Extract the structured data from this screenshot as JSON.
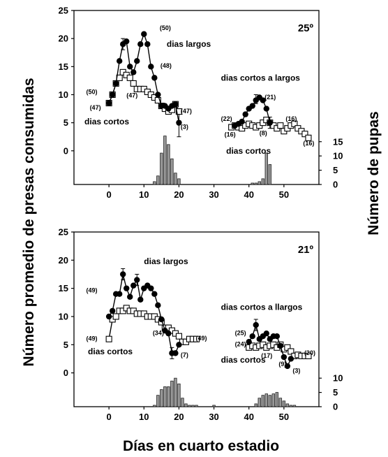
{
  "figure": {
    "ylabel_left": "Número promedio de presas consumidas",
    "ylabel_right": "Número de pupas",
    "xlabel": "Días en cuarto estadio"
  },
  "chart_data": [
    {
      "type": "line",
      "panel_label": "25º",
      "xticks": [
        "0",
        "10",
        "20",
        "30",
        "40",
        "50"
      ],
      "yticks": [
        "0",
        "5",
        "10",
        "15",
        "20",
        "25"
      ],
      "y2ticks": [
        "0",
        "5",
        "10",
        "15"
      ],
      "xlim": [
        -10,
        60
      ],
      "ylim": [
        -6,
        25
      ],
      "y2lim": [
        0,
        24
      ],
      "series": [
        {
          "name": "dias largos",
          "marker": "filled-circle",
          "x": [
            0,
            1,
            2,
            3,
            4,
            5,
            6,
            7,
            8,
            9,
            10,
            11,
            12,
            13,
            14,
            15,
            16,
            17,
            18,
            19,
            20
          ],
          "y": [
            8.5,
            10,
            12,
            16,
            19,
            19.5,
            15,
            14,
            16,
            19,
            20.8,
            19,
            15,
            13,
            10,
            8,
            8,
            7.5,
            8,
            8.3,
            5
          ]
        },
        {
          "name": "dias cortos",
          "marker": "open-square",
          "x": [
            0,
            1,
            2,
            3,
            4,
            5,
            6,
            7,
            8,
            9,
            10,
            11,
            12,
            13,
            14,
            15,
            16,
            17,
            18,
            19,
            20
          ],
          "y": [
            8.5,
            10,
            12,
            13,
            14,
            13.5,
            13,
            12,
            11,
            11,
            11,
            10.5,
            10,
            9.5,
            9,
            8,
            7.5,
            7,
            7.3,
            8.3,
            7
          ]
        },
        {
          "name": "dias cortos a largos",
          "marker": "filled-circle",
          "x": [
            36,
            37,
            38,
            39,
            40,
            41,
            42,
            43,
            44,
            45,
            46
          ],
          "y": [
            4.5,
            4.8,
            5.2,
            6.5,
            7.5,
            8,
            9,
            9.5,
            9,
            7.5,
            5
          ]
        },
        {
          "name": "dias cortos (2)",
          "marker": "open-square",
          "x": [
            35,
            36,
            37,
            38,
            39,
            40,
            41,
            42,
            43,
            44,
            45,
            46,
            47,
            48,
            49,
            50,
            51,
            52,
            53,
            54,
            55,
            56,
            57
          ],
          "y": [
            4.2,
            4.5,
            4.2,
            4,
            4.5,
            4.8,
            4.5,
            4.2,
            4.5,
            5,
            5.5,
            5,
            4.5,
            4,
            4.5,
            3.5,
            4,
            4.5,
            4.8,
            4,
            3.5,
            3,
            2.3
          ]
        }
      ],
      "error_bars": [
        {
          "x": 4,
          "y": 19,
          "err": 1
        },
        {
          "x": 20,
          "y": 5,
          "err": 2.5
        },
        {
          "x": 42,
          "y": 9.2,
          "err": 0.8
        },
        {
          "x": 46,
          "y": 5,
          "err": 1
        }
      ],
      "pupae_histogram": {
        "x": [
          13,
          14,
          15,
          16,
          17,
          18,
          19,
          20,
          41,
          42,
          43,
          44,
          45,
          46
        ],
        "values": [
          1,
          3,
          11,
          17,
          14,
          9,
          4,
          2,
          0.5,
          0.5,
          1,
          2,
          11,
          7
        ]
      },
      "annotations": [
        {
          "text": "(50)",
          "x": 14.5,
          "y": 21.5
        },
        {
          "text": "dias largos",
          "x": 16.5,
          "y": 18.5
        },
        {
          "text": "(48)",
          "x": 14.7,
          "y": 14.8
        },
        {
          "text": "(50)",
          "x": -6.5,
          "y": 10.1
        },
        {
          "text": "(47)",
          "x": -5.5,
          "y": 7.3
        },
        {
          "text": "(47)",
          "x": 5,
          "y": 9.5
        },
        {
          "text": "(47)",
          "x": 20.5,
          "y": 6.7
        },
        {
          "text": "(3)",
          "x": 20.5,
          "y": 3.9
        },
        {
          "text": "dias cortos",
          "x": -7,
          "y": 4.7
        },
        {
          "text": "dias cortos a largos",
          "x": 32,
          "y": 12.5
        },
        {
          "text": "(21)",
          "x": 44.5,
          "y": 9.2
        },
        {
          "text": "(22)",
          "x": 32,
          "y": 5.3
        },
        {
          "text": "(16)",
          "x": 33,
          "y": 2.5
        },
        {
          "text": "(16)",
          "x": 50.5,
          "y": 5.3
        },
        {
          "text": "(16)",
          "x": 55.5,
          "y": 1
        },
        {
          "text": "(8)",
          "x": 43,
          "y": 2.8
        },
        {
          "text": "dias cortos",
          "x": 33.5,
          "y": -0.5
        }
      ]
    },
    {
      "type": "line",
      "panel_label": "21º",
      "xticks": [
        "0",
        "10",
        "20",
        "30",
        "40",
        "50"
      ],
      "yticks": [
        "0",
        "5",
        "10",
        "15",
        "20",
        "25"
      ],
      "y2ticks": [
        "0",
        "5",
        "10"
      ],
      "xlim": [
        -10,
        60
      ],
      "ylim": [
        -6,
        25
      ],
      "y2lim": [
        0,
        24
      ],
      "series": [
        {
          "name": "dias largos",
          "marker": "filled-circle",
          "x": [
            0,
            1,
            2,
            3,
            4,
            5,
            6,
            7,
            8,
            9,
            10,
            11,
            12,
            13,
            14,
            15,
            16,
            17,
            18,
            19,
            20
          ],
          "y": [
            10,
            11,
            14,
            14,
            17.5,
            15,
            13.5,
            15.5,
            16.5,
            13,
            15,
            15.5,
            15,
            14,
            12,
            9.5,
            7.5,
            7,
            3.5,
            3.5,
            5
          ]
        },
        {
          "name": "dias cortos",
          "marker": "open-square",
          "x": [
            0,
            1,
            2,
            3,
            4,
            5,
            6,
            7,
            8,
            9,
            10,
            11,
            12,
            13,
            14,
            15,
            16,
            17,
            18,
            19,
            20,
            21,
            22,
            23,
            24,
            25
          ],
          "y": [
            6,
            9.5,
            10,
            11,
            11,
            11.5,
            11,
            11,
            10.5,
            10.5,
            10.5,
            10,
            10,
            10,
            9.5,
            9,
            8,
            8,
            7.5,
            7,
            6.5,
            5.5,
            5.5,
            6,
            6,
            6
          ]
        },
        {
          "name": "dias cortos a llargos",
          "marker": "filled-circle",
          "x": [
            40,
            41,
            42,
            43,
            44,
            45,
            46,
            47,
            48,
            49,
            50,
            51,
            52
          ],
          "y": [
            5.5,
            6.5,
            8.5,
            6,
            6.5,
            7,
            6,
            6.5,
            6.5,
            4.8,
            2.8,
            1.2,
            2.5
          ]
        },
        {
          "name": "dias cortos (2)",
          "marker": "open-square",
          "x": [
            40,
            41,
            42,
            43,
            44,
            45,
            46,
            47,
            48,
            49,
            50,
            51,
            52,
            53,
            54,
            55,
            56,
            57
          ],
          "y": [
            4.5,
            4.8,
            4.5,
            4.8,
            5,
            4.5,
            4.8,
            5,
            4.5,
            5,
            4.2,
            4.5,
            3.8,
            3,
            3.2,
            3,
            3,
            3
          ]
        }
      ],
      "error_bars": [
        {
          "x": 4,
          "y": 17.5,
          "err": 1
        },
        {
          "x": 8,
          "y": 16.5,
          "err": 1
        },
        {
          "x": 18,
          "y": 3.5,
          "err": 1
        },
        {
          "x": 42,
          "y": 8.5,
          "err": 1
        }
      ],
      "pupae_histogram": {
        "x": [
          13,
          14,
          15,
          16,
          17,
          18,
          19,
          20,
          21,
          22,
          23,
          24,
          25,
          30,
          42,
          43,
          44,
          45,
          46,
          47,
          48,
          49,
          50,
          51,
          52,
          53
        ],
        "values": [
          0.5,
          4,
          6,
          7,
          7,
          9,
          10,
          8,
          3,
          1,
          0.5,
          0.5,
          0.5,
          0.5,
          1,
          3,
          4,
          4.5,
          4,
          4.5,
          5,
          3,
          2,
          1,
          0.5,
          0.5
        ]
      },
      "annotations": [
        {
          "text": "dias largos",
          "x": 10,
          "y": 19.3
        },
        {
          "text": "(49)",
          "x": -6.5,
          "y": 14.3
        },
        {
          "text": "(49)",
          "x": -6.5,
          "y": 5.7
        },
        {
          "text": "dias cortos",
          "x": -6,
          "y": 3.3
        },
        {
          "text": "(34)",
          "x": 12.5,
          "y": 6.7
        },
        {
          "text": "(49)",
          "x": 24.8,
          "y": 5.8
        },
        {
          "text": "(7)",
          "x": 20.5,
          "y": 2.8
        },
        {
          "text": "dias cortos a llargos",
          "x": 32,
          "y": 11.2
        },
        {
          "text": "(25)",
          "x": 36,
          "y": 6.7
        },
        {
          "text": "(24)",
          "x": 36,
          "y": 4.7
        },
        {
          "text": "(17)",
          "x": 43.5,
          "y": 2.7
        },
        {
          "text": "dias cortos",
          "x": 32,
          "y": 1.8
        },
        {
          "text": "(9)",
          "x": 48.5,
          "y": 1.2
        },
        {
          "text": "(3)",
          "x": 52.5,
          "y": 0
        },
        {
          "text": "(20)",
          "x": 55.8,
          "y": 3.2
        }
      ]
    }
  ]
}
